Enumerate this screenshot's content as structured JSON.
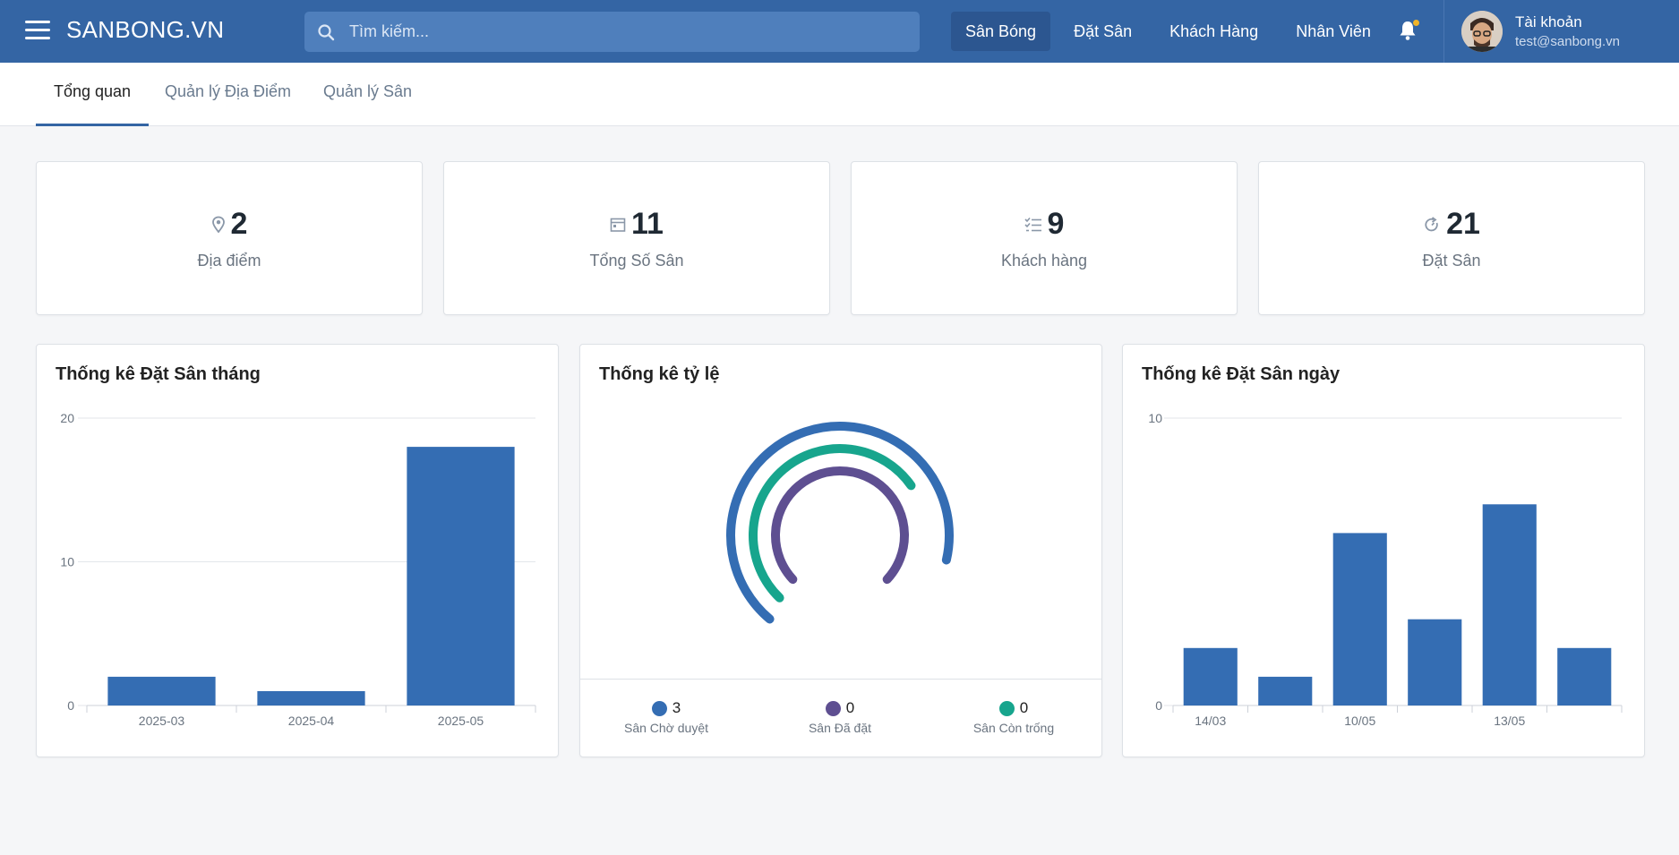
{
  "header": {
    "brand": "SANBONG.VN",
    "search_placeholder": "Tìm kiếm...",
    "nav": [
      "Sân Bóng",
      "Đặt Sân",
      "Khách Hàng",
      "Nhân Viên"
    ],
    "account_title": "Tài khoản",
    "account_email": "test@sanbong.vn"
  },
  "tabs": [
    "Tổng quan",
    "Quản lý Địa Điểm",
    "Quản lý Sân"
  ],
  "stats": [
    {
      "value": "2",
      "label": "Địa điểm",
      "icon": "location-pin-icon"
    },
    {
      "value": "11",
      "label": "Tổng Số Sân",
      "icon": "calendar-icon"
    },
    {
      "value": "9",
      "label": "Khách hàng",
      "icon": "checklist-icon"
    },
    {
      "value": "21",
      "label": "Đặt Sân",
      "icon": "refresh-icon"
    }
  ],
  "panels": {
    "monthly_title": "Thống kê Đặt Sân tháng",
    "ratio_title": "Thống kê tỷ lệ",
    "daily_title": "Thống kê Đặt Sân ngày"
  },
  "chart_data": [
    {
      "type": "bar",
      "title": "Thống kê Đặt Sân tháng",
      "categories": [
        "2025-03",
        "2025-04",
        "2025-05"
      ],
      "values": [
        2,
        1,
        18
      ],
      "ylim": [
        0,
        20
      ],
      "yticks": [
        0,
        10,
        20
      ],
      "color": "#346db3"
    },
    {
      "type": "pie",
      "title": "Thống kê tỷ lệ",
      "series": [
        {
          "name": "Sân Chờ duyệt",
          "value": 3,
          "color": "#346db3"
        },
        {
          "name": "Sân Đã đặt",
          "value": 0,
          "color": "#5e4f91"
        },
        {
          "name": "Sân Còn trống",
          "value": 0,
          "color": "#17a58d"
        }
      ]
    },
    {
      "type": "bar",
      "title": "Thống kê Đặt Sân ngày",
      "categories": [
        "14/03",
        "",
        "10/05",
        "",
        "13/05",
        ""
      ],
      "values": [
        2,
        1,
        6,
        3,
        7,
        2
      ],
      "ylim": [
        0,
        10
      ],
      "yticks": [
        0,
        10
      ],
      "color": "#346db3"
    }
  ]
}
